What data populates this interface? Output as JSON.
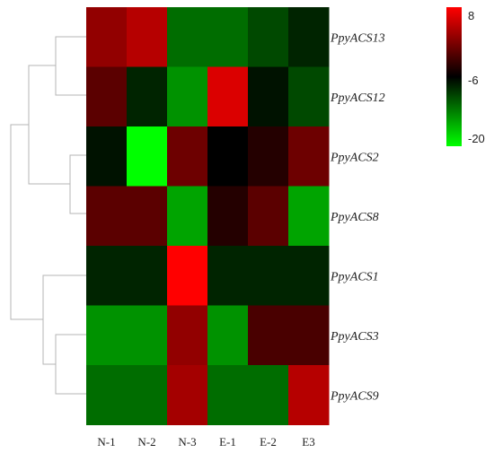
{
  "chart_data": {
    "type": "heatmap",
    "title": "",
    "xlabel": "",
    "ylabel": "",
    "columns": [
      "N-1",
      "N-2",
      "N-3",
      "E-1",
      "E-2",
      "E3"
    ],
    "rows": [
      "PpyACS13",
      "PpyACS12",
      "PpyACS2",
      "PpyACS8",
      "PpyACS1",
      "PpyACS3",
      "PpyACS9"
    ],
    "values": [
      [
        2,
        4,
        -12,
        -12,
        -10,
        -8
      ],
      [
        -1,
        -8,
        -14,
        6,
        -7,
        -10
      ],
      [
        -7,
        -20,
        0,
        -6,
        -4,
        0
      ],
      [
        -1,
        -1,
        -15,
        -4,
        -1,
        -15
      ],
      [
        -8,
        -8,
        8,
        -8,
        -8,
        -8
      ],
      [
        -14,
        -14,
        2,
        -14,
        -2,
        -2
      ],
      [
        -12,
        -12,
        3,
        -12,
        -12,
        4
      ]
    ],
    "color_scale": {
      "min": -20,
      "mid": -6,
      "max": 8,
      "ticks": [
        "8",
        "-6",
        "-20"
      ],
      "colors": {
        "low": "#00ff00",
        "mid": "#000000",
        "high": "#ff0000"
      }
    },
    "row_dendrogram": true,
    "legend_position": "top-right"
  }
}
